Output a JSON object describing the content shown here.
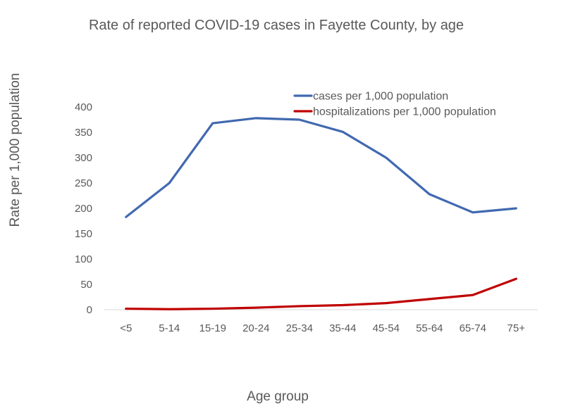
{
  "chart_data": {
    "type": "line",
    "title": "Rate of reported COVID-19 cases in Fayette County, by age",
    "xlabel": "Age group",
    "ylabel": "Rate per 1,000 population",
    "categories": [
      "<5",
      "5-14",
      "15-19",
      "20-24",
      "25-34",
      "35-44",
      "45-54",
      "55-64",
      "65-74",
      "75+"
    ],
    "ylim": [
      0,
      400
    ],
    "yticks": [
      0,
      50,
      100,
      150,
      200,
      250,
      300,
      350,
      400
    ],
    "grid": false,
    "legend_position": "top-right",
    "series": [
      {
        "name": "cases per 1,000 population",
        "color": "#4169B0",
        "values": [
          183,
          250,
          368,
          378,
          375,
          351,
          300,
          228,
          192,
          200
        ]
      },
      {
        "name": "hospitalizations per 1,000 population",
        "color": "#C00000",
        "values": [
          2,
          1,
          2,
          4,
          7,
          9,
          13,
          21,
          29,
          61
        ]
      }
    ]
  }
}
